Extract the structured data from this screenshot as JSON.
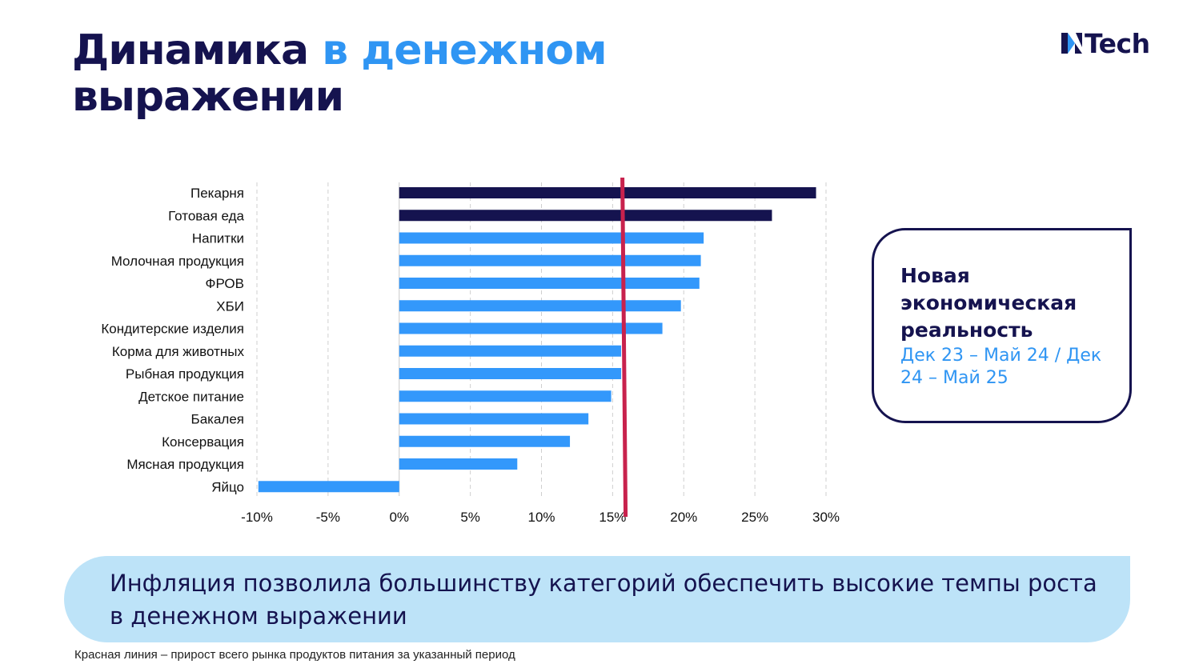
{
  "header": {
    "title_part1": "Динамика",
    "title_accent": "в денежном",
    "title_part2": "выражении",
    "logo_text": "Tech"
  },
  "chart_data": {
    "type": "bar",
    "orientation": "horizontal",
    "categories": [
      "Пекарня",
      "Готовая еда",
      "Напитки",
      "Молочная продукция",
      "ФРОВ",
      "ХБИ",
      "Кондитерские изделия",
      "Корма для животных",
      "Рыбная продукция",
      "Детское питание",
      "Бакалея",
      "Консервация",
      "Мясная продукция",
      "Яйцо"
    ],
    "values": [
      29.3,
      26.2,
      21.4,
      21.2,
      21.1,
      19.8,
      18.5,
      15.6,
      15.6,
      14.9,
      13.3,
      12.0,
      8.3,
      -9.9
    ],
    "highlighted_categories": [
      "Пекарня",
      "Готовая еда"
    ],
    "colors": {
      "highlight": "#15134f",
      "default": "#3398fb",
      "reference_line": "#c8224d"
    },
    "reference_line_value": 15.8,
    "xlim": [
      -10,
      30
    ],
    "x_ticks": [
      -10,
      -5,
      0,
      5,
      10,
      15,
      20,
      25,
      30
    ],
    "tick_suffix": "%",
    "grid": "vertical dashed",
    "title": "",
    "xlabel": "",
    "ylabel": ""
  },
  "info_box": {
    "heading": "Новая экономическая реальность",
    "period": "Дек 23 – Май 24 / Дек 24 – Май 25"
  },
  "banner": {
    "text": "Инфляция позволила большинству категорий обеспечить высокие темпы роста в денежном выражении"
  },
  "footnote": "Красная линия – прирост всего рынка продуктов питания за указанный период"
}
